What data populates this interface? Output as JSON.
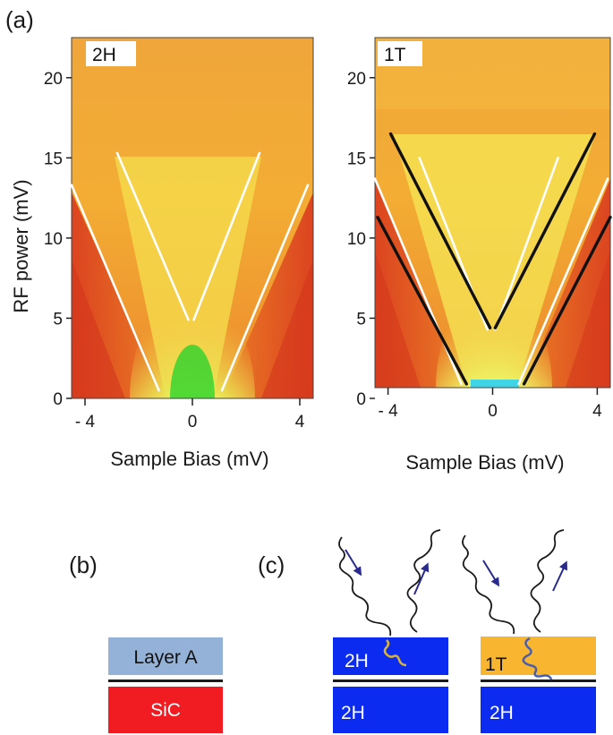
{
  "panel_labels": {
    "a": "(a)",
    "b": "(b)",
    "c": "(c)"
  },
  "colors": {
    "layer_a": "#94b1d8",
    "sic": "#f11c22",
    "layer_2h": "#0b2bf0",
    "layer_1t": "#f7b530",
    "photon_wave": "#1a1a1a",
    "photon_arrow": "#2a2a8c",
    "wiggle_2h": "#d9b430",
    "wiggle_1t": "#4a5fa8"
  },
  "panel_b": {
    "top_layer": "Layer A",
    "substrate": "SiC"
  },
  "panel_c": {
    "left": {
      "top_layer": "2H",
      "substrate": "2H"
    },
    "right": {
      "top_layer": "1T",
      "substrate": "2H"
    }
  },
  "chart_data": [
    {
      "type": "heatmap",
      "title": "2H",
      "xlabel": "Sample Bias (mV)",
      "ylabel": "RF power (mV)",
      "xlim": [
        -4.5,
        4.5
      ],
      "ylim": [
        0,
        22.5
      ],
      "xticks": [
        -4,
        0,
        4
      ],
      "xtick_labels": [
        "- 4",
        "0",
        "4"
      ],
      "yticks": [
        0,
        5,
        10,
        15,
        20
      ],
      "ytick_labels": [
        "0",
        "5",
        "10",
        "15",
        "20"
      ],
      "guide_lines": [
        {
          "color": "white",
          "x": [
            -4.5,
            -1.25
          ],
          "y": [
            13.3,
            0.5
          ]
        },
        {
          "color": "white",
          "x": [
            1.1,
            4.3
          ],
          "y": [
            0.5,
            13.3
          ]
        },
        {
          "color": "white",
          "x": [
            -2.8,
            -0.15
          ],
          "y": [
            15.3,
            4.9
          ]
        },
        {
          "color": "white",
          "x": [
            2.5,
            0.05
          ],
          "y": [
            15.3,
            4.9
          ]
        }
      ]
    },
    {
      "type": "heatmap",
      "title": "1T",
      "xlabel": "Sample Bias (mV)",
      "ylabel": "",
      "xlim": [
        -4.5,
        4.5
      ],
      "ylim": [
        0,
        22.5
      ],
      "xticks": [
        -4,
        0,
        4
      ],
      "xtick_labels": [
        "- 4",
        "0",
        "4"
      ],
      "yticks": [
        0,
        5,
        10,
        15,
        20
      ],
      "ytick_labels": [
        "0",
        "5",
        "10",
        "15",
        "20"
      ],
      "guide_lines": [
        {
          "color": "white",
          "x": [
            -4.5,
            -1.2
          ],
          "y": [
            13.7,
            0.9
          ]
        },
        {
          "color": "white",
          "x": [
            1.0,
            4.4
          ],
          "y": [
            0.9,
            13.7
          ]
        },
        {
          "color": "white",
          "x": [
            -2.8,
            -0.2
          ],
          "y": [
            15.0,
            4.3
          ]
        },
        {
          "color": "white",
          "x": [
            2.5,
            0.1
          ],
          "y": [
            15.0,
            4.3
          ]
        },
        {
          "color": "black",
          "x": [
            -4.4,
            -1.0
          ],
          "y": [
            11.3,
            0.9
          ]
        },
        {
          "color": "black",
          "x": [
            1.2,
            4.5
          ],
          "y": [
            0.9,
            11.3
          ]
        },
        {
          "color": "black",
          "x": [
            -3.9,
            -0.1
          ],
          "y": [
            16.5,
            4.4
          ]
        },
        {
          "color": "black",
          "x": [
            3.9,
            0.1
          ],
          "y": [
            16.5,
            4.4
          ]
        }
      ]
    }
  ]
}
